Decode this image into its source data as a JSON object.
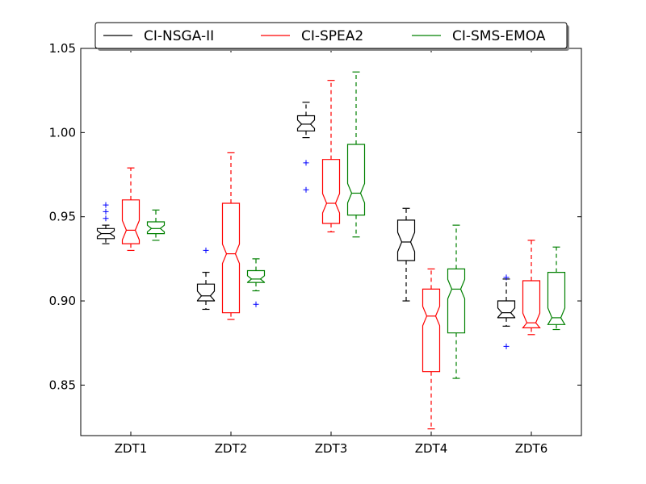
{
  "chart_data": {
    "type": "boxplot",
    "notched": true,
    "categories": [
      "ZDT1",
      "ZDT2",
      "ZDT3",
      "ZDT4",
      "ZDT6"
    ],
    "ylim": [
      0.82,
      1.05
    ],
    "yticks": [
      "0.85",
      "0.90",
      "0.95",
      "1.00",
      "1.05"
    ],
    "ytick_values": [
      0.85,
      0.9,
      0.95,
      1.0,
      1.05
    ],
    "legend_position": "top-center",
    "grid": false,
    "series": [
      {
        "name": "CI-NSGA-II",
        "color": "#000000",
        "boxes": [
          {
            "whislo": 0.934,
            "q1": 0.937,
            "med": 0.94,
            "q3": 0.943,
            "whishi": 0.945,
            "fliers": [
              0.949,
              0.953,
              0.957
            ]
          },
          {
            "whislo": 0.895,
            "q1": 0.9,
            "med": 0.903,
            "q3": 0.91,
            "whishi": 0.917,
            "fliers": [
              0.93
            ]
          },
          {
            "whislo": 0.997,
            "q1": 1.001,
            "med": 1.005,
            "q3": 1.01,
            "whishi": 1.018,
            "fliers": [
              0.982,
              0.966
            ]
          },
          {
            "whislo": 0.9,
            "q1": 0.924,
            "med": 0.935,
            "q3": 0.948,
            "whishi": 0.955,
            "fliers": []
          },
          {
            "whislo": 0.885,
            "q1": 0.89,
            "med": 0.893,
            "q3": 0.9,
            "whishi": 0.913,
            "fliers": [
              0.914,
              0.873
            ]
          }
        ]
      },
      {
        "name": "CI-SPEA2",
        "color": "#ff0000",
        "boxes": [
          {
            "whislo": 0.93,
            "q1": 0.934,
            "med": 0.942,
            "q3": 0.96,
            "whishi": 0.979,
            "fliers": []
          },
          {
            "whislo": 0.889,
            "q1": 0.893,
            "med": 0.928,
            "q3": 0.958,
            "whishi": 0.988,
            "fliers": []
          },
          {
            "whislo": 0.941,
            "q1": 0.946,
            "med": 0.958,
            "q3": 0.984,
            "whishi": 1.031,
            "fliers": []
          },
          {
            "whislo": 0.824,
            "q1": 0.858,
            "med": 0.891,
            "q3": 0.907,
            "whishi": 0.919,
            "fliers": []
          },
          {
            "whislo": 0.88,
            "q1": 0.884,
            "med": 0.887,
            "q3": 0.912,
            "whishi": 0.936,
            "fliers": []
          }
        ]
      },
      {
        "name": "CI-SMS-EMOA",
        "color": "#008000",
        "boxes": [
          {
            "whislo": 0.936,
            "q1": 0.94,
            "med": 0.943,
            "q3": 0.947,
            "whishi": 0.954,
            "fliers": []
          },
          {
            "whislo": 0.906,
            "q1": 0.911,
            "med": 0.913,
            "q3": 0.918,
            "whishi": 0.925,
            "fliers": [
              0.898
            ]
          },
          {
            "whislo": 0.938,
            "q1": 0.951,
            "med": 0.964,
            "q3": 0.993,
            "whishi": 1.036,
            "fliers": []
          },
          {
            "whislo": 0.854,
            "q1": 0.881,
            "med": 0.907,
            "q3": 0.919,
            "whishi": 0.945,
            "fliers": []
          },
          {
            "whislo": 0.883,
            "q1": 0.886,
            "med": 0.89,
            "q3": 0.917,
            "whishi": 0.932,
            "fliers": []
          }
        ]
      }
    ]
  }
}
